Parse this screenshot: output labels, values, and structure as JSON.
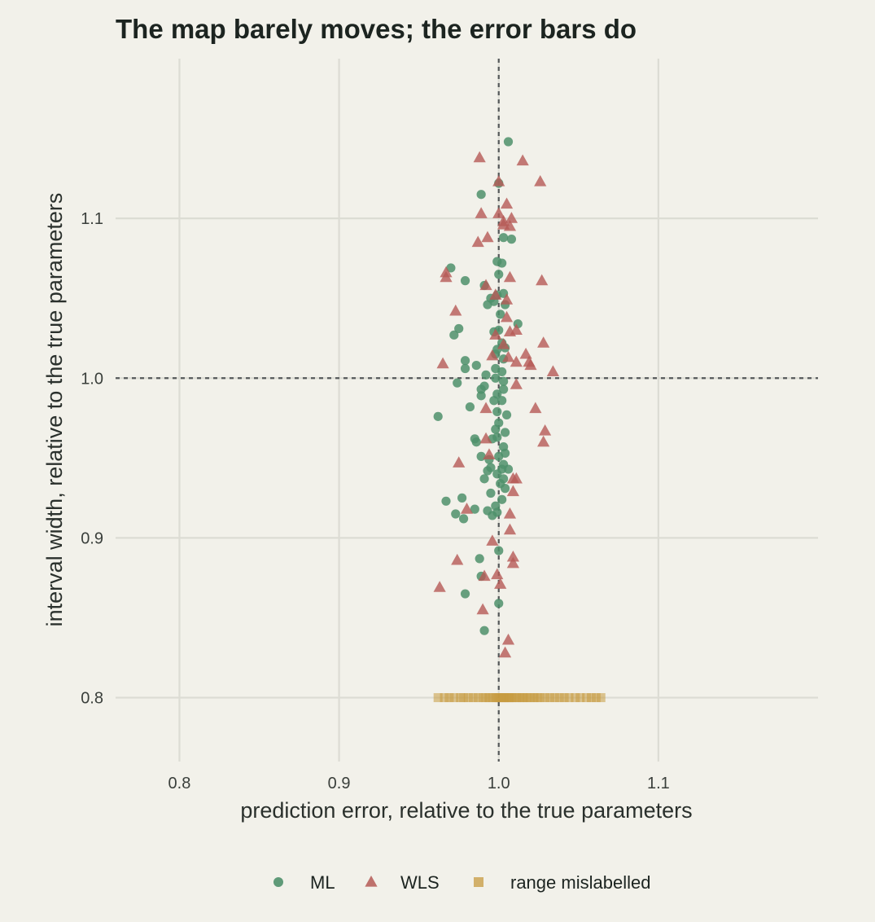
{
  "chart_data": {
    "type": "scatter",
    "title": "The map barely moves; the error bars do",
    "xlabel": "prediction error, relative to the true parameters",
    "ylabel": "interval width, relative to the true parameters",
    "xlim": [
      0.76,
      1.2
    ],
    "ylim": [
      0.76,
      1.2
    ],
    "x_ticks": [
      "0.8",
      "0.9",
      "1.0",
      "1.1"
    ],
    "y_ticks": [
      "0.8",
      "0.9",
      "1.0",
      "1.1"
    ],
    "reference_lines": {
      "x": 1.0,
      "y": 1.0
    },
    "grid": true,
    "legend_position": "bottom",
    "series": [
      {
        "name": "ML",
        "marker": "circle",
        "color": "#4f906b",
        "points": [
          [
            1.006,
            1.148
          ],
          [
            1.0,
            1.122
          ],
          [
            0.989,
            1.115
          ],
          [
            1.003,
            1.088
          ],
          [
            1.008,
            1.087
          ],
          [
            0.999,
            1.073
          ],
          [
            1.002,
            1.072
          ],
          [
            0.97,
            1.069
          ],
          [
            1.0,
            1.065
          ],
          [
            0.979,
            1.061
          ],
          [
            0.991,
            1.058
          ],
          [
            1.003,
            1.053
          ],
          [
            0.999,
            1.052
          ],
          [
            0.995,
            1.05
          ],
          [
            0.997,
            1.048
          ],
          [
            0.993,
            1.046
          ],
          [
            1.004,
            1.046
          ],
          [
            1.001,
            1.04
          ],
          [
            1.012,
            1.034
          ],
          [
            0.975,
            1.031
          ],
          [
            0.972,
            1.027
          ],
          [
            1.0,
            1.03
          ],
          [
            0.997,
            1.029
          ],
          [
            1.002,
            1.022
          ],
          [
            1.004,
            1.019
          ],
          [
            0.999,
            1.018
          ],
          [
            0.998,
            1.015
          ],
          [
            1.003,
            1.012
          ],
          [
            0.979,
            1.011
          ],
          [
            0.986,
            1.008
          ],
          [
            0.979,
            1.006
          ],
          [
            0.998,
            1.006
          ],
          [
            1.002,
            1.004
          ],
          [
            0.992,
            1.002
          ],
          [
            0.998,
            1.0
          ],
          [
            1.003,
            0.998
          ],
          [
            0.974,
            0.997
          ],
          [
            0.991,
            0.995
          ],
          [
            0.989,
            0.993
          ],
          [
            1.003,
            0.993
          ],
          [
            0.989,
            0.989
          ],
          [
            0.999,
            0.99
          ],
          [
            0.997,
            0.986
          ],
          [
            1.002,
            0.986
          ],
          [
            0.982,
            0.982
          ],
          [
            0.999,
            0.979
          ],
          [
            1.005,
            0.977
          ],
          [
            0.962,
            0.976
          ],
          [
            1.0,
            0.972
          ],
          [
            0.998,
            0.968
          ],
          [
            1.004,
            0.966
          ],
          [
            0.999,
            0.963
          ],
          [
            0.985,
            0.962
          ],
          [
            0.996,
            0.962
          ],
          [
            0.986,
            0.96
          ],
          [
            1.003,
            0.957
          ],
          [
            1.004,
            0.953
          ],
          [
            0.989,
            0.951
          ],
          [
            0.994,
            0.949
          ],
          [
            1.0,
            0.951
          ],
          [
            1.003,
            0.946
          ],
          [
            0.995,
            0.944
          ],
          [
            0.993,
            0.942
          ],
          [
            1.002,
            0.943
          ],
          [
            1.006,
            0.943
          ],
          [
            0.999,
            0.94
          ],
          [
            1.003,
            0.937
          ],
          [
            0.991,
            0.937
          ],
          [
            1.001,
            0.934
          ],
          [
            1.004,
            0.931
          ],
          [
            0.995,
            0.928
          ],
          [
            0.977,
            0.925
          ],
          [
            0.967,
            0.923
          ],
          [
            1.002,
            0.924
          ],
          [
            0.998,
            0.92
          ],
          [
            0.985,
            0.918
          ],
          [
            0.993,
            0.917
          ],
          [
            0.973,
            0.915
          ],
          [
            0.999,
            0.916
          ],
          [
            0.996,
            0.914
          ],
          [
            0.978,
            0.912
          ],
          [
            1.0,
            0.892
          ],
          [
            0.988,
            0.887
          ],
          [
            0.989,
            0.876
          ],
          [
            0.979,
            0.865
          ],
          [
            1.0,
            0.859
          ],
          [
            0.991,
            0.842
          ]
        ]
      },
      {
        "name": "WLS",
        "marker": "triangle",
        "color": "#b55a56",
        "points": [
          [
            0.988,
            1.138
          ],
          [
            1.015,
            1.136
          ],
          [
            1.0,
            1.123
          ],
          [
            1.026,
            1.123
          ],
          [
            1.005,
            1.109
          ],
          [
            0.989,
            1.103
          ],
          [
            1.0,
            1.103
          ],
          [
            1.008,
            1.1
          ],
          [
            1.003,
            1.098
          ],
          [
            1.003,
            1.096
          ],
          [
            1.007,
            1.095
          ],
          [
            0.993,
            1.088
          ],
          [
            0.987,
            1.085
          ],
          [
            0.967,
            1.066
          ],
          [
            0.967,
            1.063
          ],
          [
            1.007,
            1.063
          ],
          [
            1.027,
            1.061
          ],
          [
            0.992,
            1.058
          ],
          [
            0.998,
            1.052
          ],
          [
            1.005,
            1.049
          ],
          [
            0.973,
            1.042
          ],
          [
            1.005,
            1.038
          ],
          [
            1.007,
            1.029
          ],
          [
            0.998,
            1.027
          ],
          [
            1.011,
            1.03
          ],
          [
            1.003,
            1.021
          ],
          [
            1.028,
            1.022
          ],
          [
            1.006,
            1.013
          ],
          [
            1.017,
            1.015
          ],
          [
            0.996,
            1.014
          ],
          [
            1.011,
            1.01
          ],
          [
            1.019,
            1.01
          ],
          [
            0.965,
            1.009
          ],
          [
            1.02,
            1.008
          ],
          [
            1.034,
            1.004
          ],
          [
            1.011,
            0.996
          ],
          [
            1.023,
            0.981
          ],
          [
            0.992,
            0.981
          ],
          [
            1.029,
            0.967
          ],
          [
            0.992,
            0.962
          ],
          [
            1.028,
            0.96
          ],
          [
            0.994,
            0.952
          ],
          [
            0.975,
            0.947
          ],
          [
            1.009,
            0.937
          ],
          [
            1.011,
            0.937
          ],
          [
            1.009,
            0.929
          ],
          [
            0.98,
            0.918
          ],
          [
            1.007,
            0.915
          ],
          [
            1.007,
            0.905
          ],
          [
            0.996,
            0.898
          ],
          [
            0.974,
            0.886
          ],
          [
            1.009,
            0.888
          ],
          [
            1.009,
            0.884
          ],
          [
            0.999,
            0.877
          ],
          [
            0.991,
            0.876
          ],
          [
            1.001,
            0.871
          ],
          [
            0.963,
            0.869
          ],
          [
            0.99,
            0.855
          ],
          [
            1.006,
            0.836
          ],
          [
            1.004,
            0.828
          ]
        ]
      },
      {
        "name": "range mislabelled",
        "marker": "square",
        "color": "#c79a3f",
        "y": 0.8,
        "x": [
          0.962,
          0.966,
          0.969,
          0.972,
          0.976,
          0.978,
          0.981,
          0.984,
          0.987,
          0.99,
          0.992,
          0.994,
          0.996,
          0.998,
          0.999,
          1.0,
          1.001,
          1.002,
          1.003,
          1.004,
          1.005,
          1.006,
          1.007,
          1.008,
          1.01,
          1.011,
          1.013,
          1.015,
          1.016,
          1.018,
          1.02,
          1.022,
          1.024,
          1.026,
          1.029,
          1.032,
          1.035,
          1.038,
          1.041,
          1.044,
          1.048,
          1.051,
          1.055,
          1.058,
          1.061,
          1.064
        ]
      }
    ]
  }
}
